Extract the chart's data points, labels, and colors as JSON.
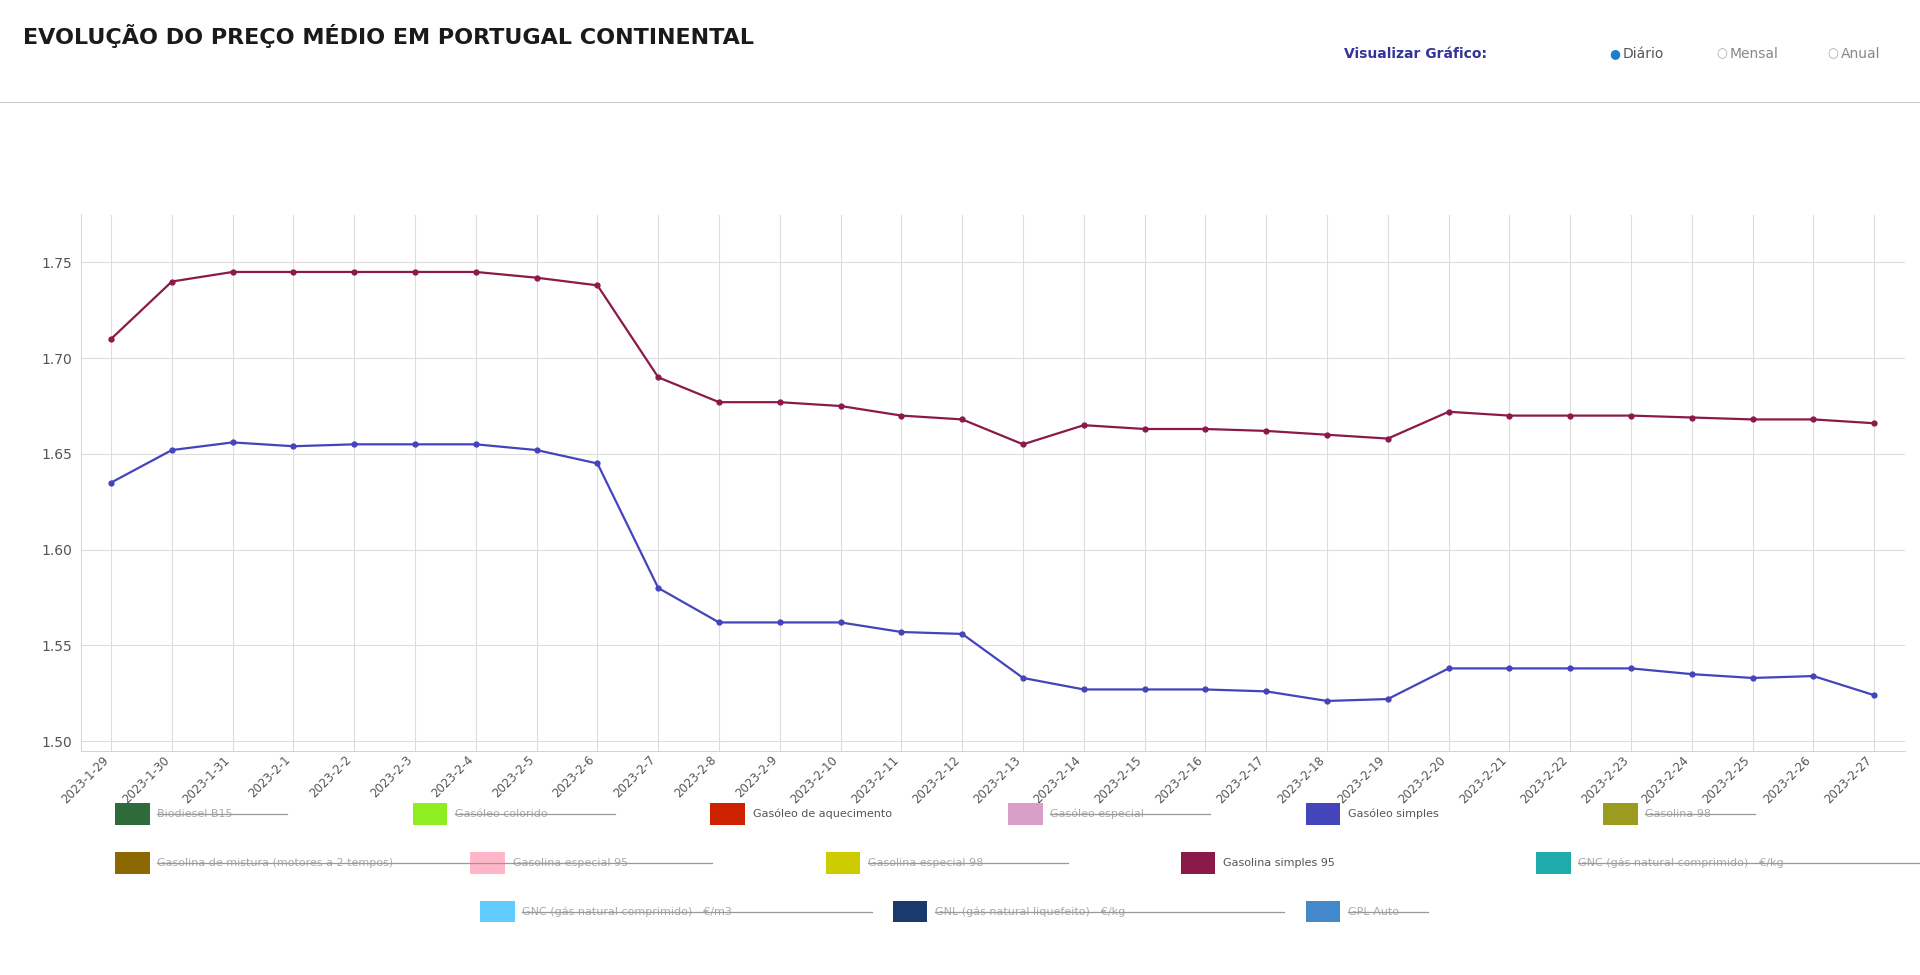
{
  "title": "EVOLUÇÃO DO PREÇO MÉDIO EM PORTUGAL CONTINENTAL",
  "background_color": "#ffffff",
  "plot_bg_color": "#ffffff",
  "grid_color": "#dddddd",
  "dates": [
    "2023-1-29",
    "2023-1-30",
    "2023-1-31",
    "2023-2-1",
    "2023-2-2",
    "2023-2-3",
    "2023-2-4",
    "2023-2-5",
    "2023-2-6",
    "2023-2-7",
    "2023-2-8",
    "2023-2-9",
    "2023-2-10",
    "2023-2-11",
    "2023-2-12",
    "2023-2-13",
    "2023-2-14",
    "2023-2-15",
    "2023-2-16",
    "2023-2-17",
    "2023-2-18",
    "2023-2-19",
    "2023-2-20",
    "2023-2-21",
    "2023-2-22",
    "2023-2-23",
    "2023-2-24",
    "2023-2-25",
    "2023-2-26",
    "2023-2-27"
  ],
  "gasolina_simples_95": [
    1.71,
    1.74,
    1.745,
    1.745,
    1.745,
    1.745,
    1.745,
    1.742,
    1.738,
    1.69,
    1.677,
    1.677,
    1.675,
    1.67,
    1.668,
    1.655,
    1.665,
    1.663,
    1.663,
    1.662,
    1.66,
    1.658,
    1.672,
    1.67,
    1.67,
    1.67,
    1.669,
    1.668,
    1.668,
    1.666
  ],
  "gasoleo_simples": [
    1.635,
    1.652,
    1.656,
    1.654,
    1.655,
    1.655,
    1.655,
    1.652,
    1.645,
    1.58,
    1.562,
    1.562,
    1.562,
    1.557,
    1.556,
    1.533,
    1.527,
    1.527,
    1.527,
    1.526,
    1.521,
    1.522,
    1.538,
    1.538,
    1.538,
    1.538,
    1.535,
    1.533,
    1.534,
    1.524
  ],
  "gasolina_95_color": "#8B1A4A",
  "gasoleo_simples_color": "#4444BB",
  "ylim": [
    1.495,
    1.775
  ],
  "yticks": [
    1.5,
    1.55,
    1.6,
    1.65,
    1.7,
    1.75
  ],
  "legend_items_row1": [
    {
      "label": "Biodiesel B15",
      "color": "#2E6B3A",
      "strikethrough": true
    },
    {
      "label": "Gasóleo colorido",
      "color": "#90EE20",
      "strikethrough": true
    },
    {
      "label": "Gasóleo de aquecimento",
      "color": "#CC2200",
      "strikethrough": false
    },
    {
      "label": "Gasóleo especial",
      "color": "#D8A0C8",
      "strikethrough": true
    },
    {
      "label": "Gasóleo simples",
      "color": "#4444BB",
      "strikethrough": false
    },
    {
      "label": "Gasolina 98",
      "color": "#9B9B20",
      "strikethrough": true
    }
  ],
  "legend_items_row2": [
    {
      "label": "Gasolina de mistura (motores a 2 tempos)",
      "color": "#8B6900",
      "strikethrough": true
    },
    {
      "label": "Gasolina especial 95",
      "color": "#FFB6C8",
      "strikethrough": true
    },
    {
      "label": "Gasolina especial 98",
      "color": "#CCCC00",
      "strikethrough": true
    },
    {
      "label": "Gasolina simples 95",
      "color": "#8B1A4A",
      "strikethrough": false
    },
    {
      "label": "GNC (gás natural comprimido) - €/kg",
      "color": "#20AAAA",
      "strikethrough": true
    }
  ],
  "legend_items_row3": [
    {
      "label": "GNC (gás natural comprimido) - €/m3",
      "color": "#60CCFF",
      "strikethrough": true
    },
    {
      "label": "GNL (gás natural liquefeito) - €/kg",
      "color": "#1A3A6B",
      "strikethrough": true
    },
    {
      "label": "GPL Auto",
      "color": "#4488CC",
      "strikethrough": true
    }
  ],
  "viz_label": "Visualizar Gráfico:",
  "viz_diario": "Diário",
  "viz_mensal": "Mensal",
  "viz_anual": "Anual"
}
